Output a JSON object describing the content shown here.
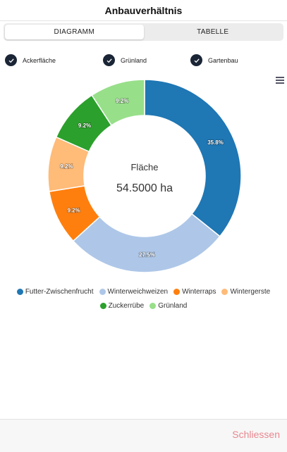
{
  "header": {
    "title": "Anbauverhältnis"
  },
  "tabs": [
    {
      "label": "DIAGRAMM",
      "active": true
    },
    {
      "label": "TABELLE",
      "active": false
    }
  ],
  "filters": [
    {
      "label": "Ackerfläche",
      "checked": true
    },
    {
      "label": "Grünland",
      "checked": true
    },
    {
      "label": "Gartenbau",
      "checked": true
    }
  ],
  "chart_data": {
    "type": "pie",
    "variant": "donut",
    "center_label": "Fläche",
    "center_value": "54.5000 ha",
    "categories": [
      "Futter-Zwischenfrucht",
      "Winterweichweizen",
      "Winterraps",
      "Wintergerste",
      "Zuckerrübe",
      "Grünland"
    ],
    "values": [
      35.8,
      27.5,
      9.2,
      9.2,
      9.2,
      9.2
    ],
    "labels": [
      "35.8%",
      "27.5%",
      "9.2%",
      "9.2%",
      "9.2%",
      "9.2%"
    ],
    "colors": [
      "#1f77b4",
      "#aec7e8",
      "#ff7f0e",
      "#ffbb78",
      "#2ca02c",
      "#98df8a"
    ],
    "legend_position": "bottom"
  },
  "footer": {
    "close_label": "Schliessen"
  }
}
